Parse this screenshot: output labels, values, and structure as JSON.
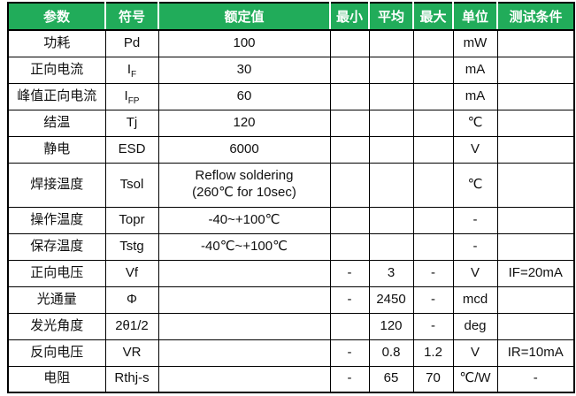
{
  "colors": {
    "header_bg": "#21AC5A",
    "header_text": "#FFFFFF",
    "grid_line": "#000000"
  },
  "table": {
    "headers": [
      "参数",
      "符号",
      "额定值",
      "最小",
      "平均",
      "最大",
      "单位",
      "测试条件"
    ],
    "rows": [
      {
        "param": "功耗",
        "sym": "Pd",
        "sub": "",
        "rated": "100",
        "rated2": "",
        "min": "",
        "avg": "",
        "max": "",
        "unit": "mW",
        "cond": ""
      },
      {
        "param": "正向电流",
        "sym": "I",
        "sub": "F",
        "rated": "30",
        "rated2": "",
        "min": "",
        "avg": "",
        "max": "",
        "unit": "mA",
        "cond": ""
      },
      {
        "param": "峰值正向电流",
        "sym": "I",
        "sub": "FP",
        "rated": "60",
        "rated2": "",
        "min": "",
        "avg": "",
        "max": "",
        "unit": "mA",
        "cond": ""
      },
      {
        "param": "结温",
        "sym": "Tj",
        "sub": "",
        "rated": "120",
        "rated2": "",
        "min": "",
        "avg": "",
        "max": "",
        "unit": "℃",
        "cond": ""
      },
      {
        "param": "静电",
        "sym": "ESD",
        "sub": "",
        "rated": "6000",
        "rated2": "",
        "min": "",
        "avg": "",
        "max": "",
        "unit": "V",
        "cond": ""
      },
      {
        "param": "焊接温度",
        "sym": "Tsol",
        "sub": "",
        "rated": "Reflow soldering",
        "rated2": "(260℃ for 10sec)",
        "min": "",
        "avg": "",
        "max": "",
        "unit": "℃",
        "cond": ""
      },
      {
        "param": "操作温度",
        "sym": "Topr",
        "sub": "",
        "rated": "-40~+100℃",
        "rated2": "",
        "min": "",
        "avg": "",
        "max": "",
        "unit": "-",
        "cond": ""
      },
      {
        "param": "保存温度",
        "sym": "Tstg",
        "sub": "",
        "rated": "-40℃~+100℃",
        "rated2": "",
        "min": "",
        "avg": "",
        "max": "",
        "unit": "-",
        "cond": ""
      },
      {
        "param": "正向电压",
        "sym": "Vf",
        "sub": "",
        "rated": "",
        "rated2": "",
        "min": "-",
        "avg": "3",
        "max": "-",
        "unit": "V",
        "cond": "IF=20mA"
      },
      {
        "param": "光通量",
        "sym": "Φ",
        "sub": "",
        "rated": "",
        "rated2": "",
        "min": "-",
        "avg": "2450",
        "max": "-",
        "unit": "mcd",
        "cond": ""
      },
      {
        "param": "发光角度",
        "sym": "2θ1/2",
        "sub": "",
        "rated": "",
        "rated2": "",
        "min": "",
        "avg": "120",
        "max": "-",
        "unit": "deg",
        "cond": ""
      },
      {
        "param": "反向电压",
        "sym": "VR",
        "sub": "",
        "rated": "",
        "rated2": "",
        "min": "-",
        "avg": "0.8",
        "max": "1.2",
        "unit": "V",
        "cond": "IR=10mA"
      },
      {
        "param": "电阻",
        "sym": "Rthj-s",
        "sub": "",
        "rated": "",
        "rated2": "",
        "min": "-",
        "avg": "65",
        "max": "70",
        "unit": "℃/W",
        "cond": "-"
      }
    ]
  }
}
